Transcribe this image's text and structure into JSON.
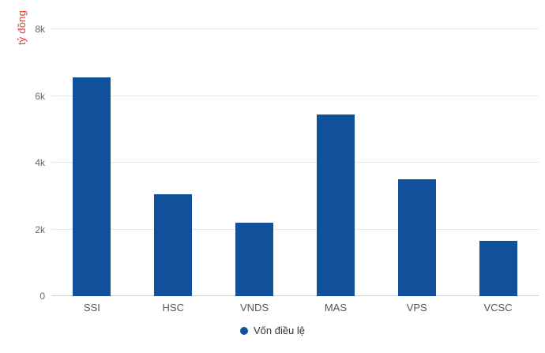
{
  "chart_data": {
    "type": "bar",
    "title": "",
    "xlabel": "",
    "ylabel": "tỷ đồng",
    "categories": [
      "SSI",
      "HSC",
      "VNDS",
      "MAS",
      "VPS",
      "VCSC"
    ],
    "values": [
      6550,
      3050,
      2200,
      5450,
      3500,
      1650
    ],
    "series_name": "Vốn điều lệ",
    "ylim": [
      0,
      8000
    ],
    "yticks": [
      {
        "label": "0",
        "value": 0
      },
      {
        "label": "2k",
        "value": 2000
      },
      {
        "label": "4k",
        "value": 4000
      },
      {
        "label": "6k",
        "value": 6000
      },
      {
        "label": "8k",
        "value": 8000
      }
    ],
    "grid": true,
    "legend": {
      "label": "Vốn điều lệ",
      "position": "bottom-center",
      "marker": "circle-icon"
    },
    "colors": {
      "bar": "#11519c",
      "axis_title": "#e63c2f",
      "gridline": "#e6e6e6",
      "axis_line": "#d0d0d0",
      "tick_text": "#666666",
      "category_text": "#555555",
      "legend_text": "#333333"
    }
  }
}
